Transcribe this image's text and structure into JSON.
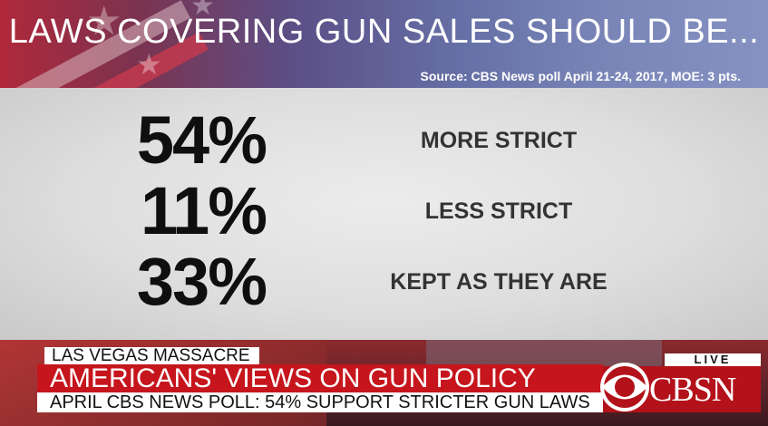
{
  "header": {
    "title": "LAWS COVERING GUN SALES SHOULD BE...",
    "source": "Source: CBS News poll April 21-24, 2017, MOE: 3 pts."
  },
  "results": [
    {
      "value": "54%",
      "label": "MORE STRICT"
    },
    {
      "value": "11%",
      "label": "LESS STRICT"
    },
    {
      "value": "33%",
      "label": "KEPT AS THEY ARE"
    }
  ],
  "lower_third": {
    "kicker": "LAS VEGAS MASSACRE",
    "headline": "AMERICANS' VIEWS ON GUN POLICY",
    "ticker": "APRIL CBS NEWS POLL: 54% SUPPORT STRICTER GUN LAWS"
  },
  "network": {
    "live_label": "LIVE",
    "logo_text": "CBSN",
    "logo_icon": "cbs-eye-icon"
  },
  "colors": {
    "headline_red": "#c6151c",
    "logo_red": "#b3121a",
    "header_blue": "#6670a6"
  }
}
